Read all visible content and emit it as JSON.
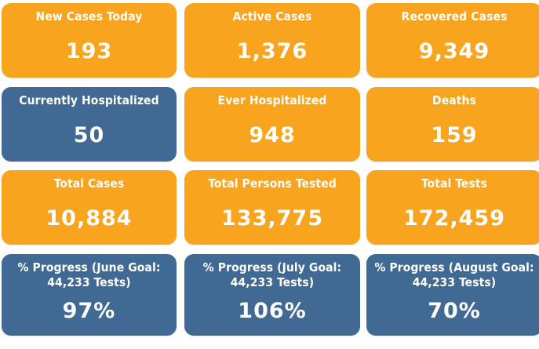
{
  "colors": {
    "orange_tile": "#f9a41e",
    "blue_tile": "#406994",
    "text": "#ffffff"
  },
  "tiles": [
    {
      "label": "New Cases Today",
      "value": "193"
    },
    {
      "label": "Active Cases",
      "value": "1,376"
    },
    {
      "label": "Recovered Cases",
      "value": "9,349"
    },
    {
      "label": "Currently Hospitalized",
      "value": "50"
    },
    {
      "label": "Ever Hospitalized",
      "value": "948"
    },
    {
      "label": "Deaths",
      "value": "159"
    },
    {
      "label": "Total Cases",
      "value": "10,884"
    },
    {
      "label": "Total Persons Tested",
      "value": "133,775"
    },
    {
      "label": "Total Tests",
      "value": "172,459"
    },
    {
      "label": "% Progress (June Goal: 44,233 Tests)",
      "value": "97%"
    },
    {
      "label": "% Progress (July Goal: 44,233 Tests)",
      "value": "106%"
    },
    {
      "label": "% Progress (August Goal: 44,233 Tests)",
      "value": "70%"
    }
  ]
}
